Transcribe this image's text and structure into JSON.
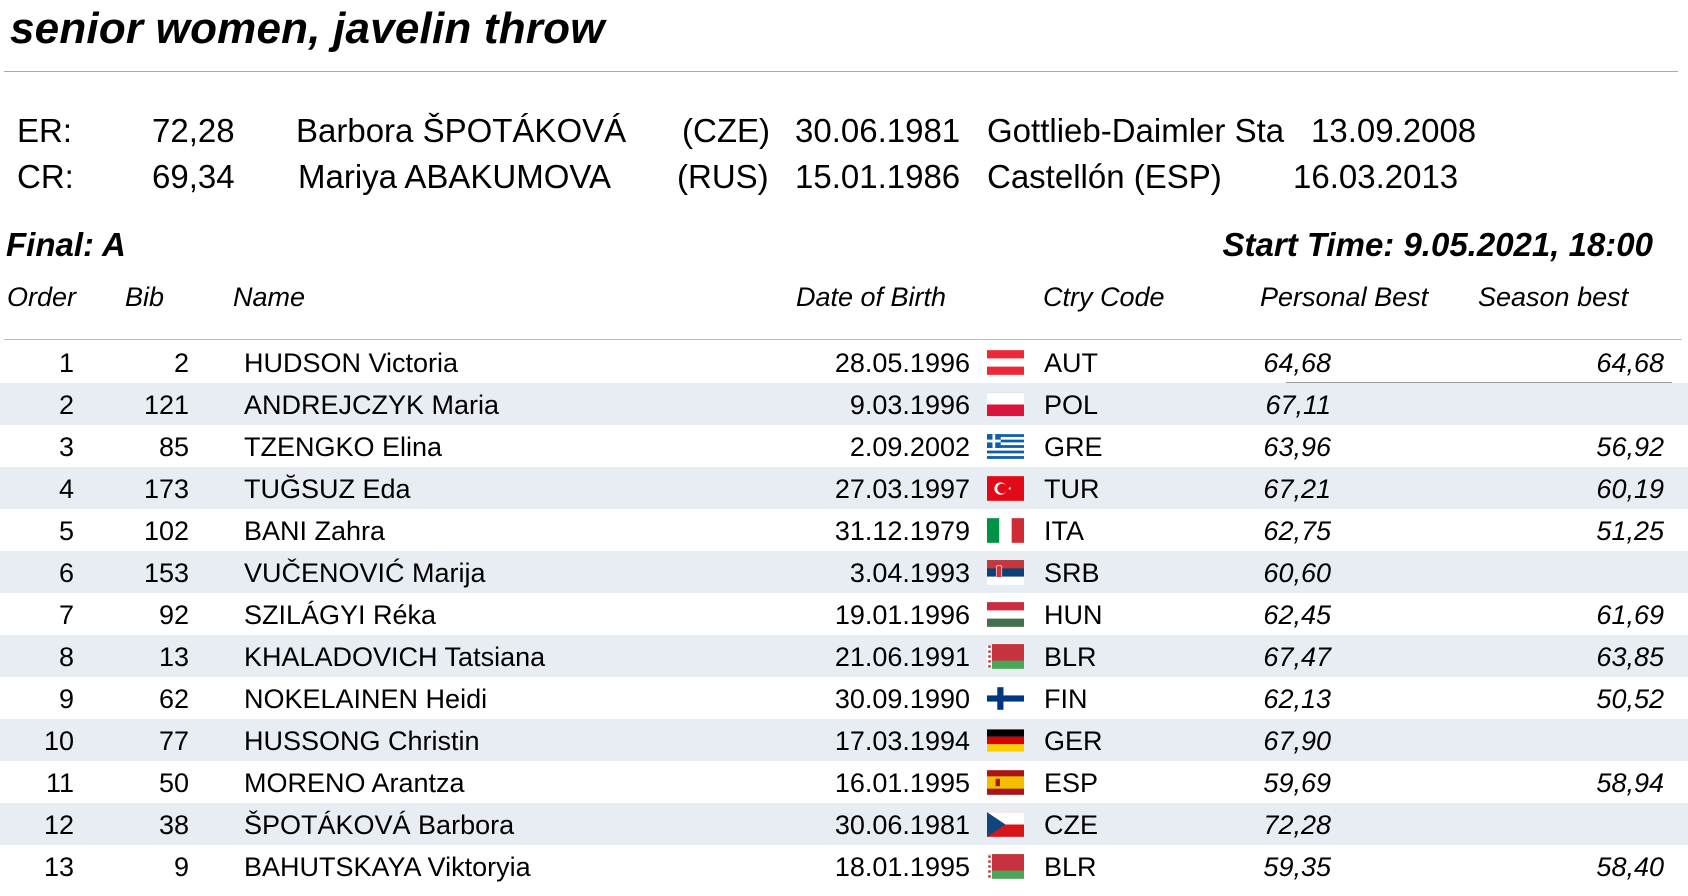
{
  "header": {
    "title": "senior women, javelin throw"
  },
  "records": [
    {
      "type": "ER:",
      "mark": "72,28",
      "athlete": "Barbora ŠPOTÁKOVÁ",
      "country": "(CZE)",
      "dob": "30.06.1981",
      "venue": "Gottlieb-Daimler Sta",
      "date": "13.09.2008"
    },
    {
      "type": "CR:",
      "mark": "69,34",
      "athlete": "Mariya ABAKUMOVA",
      "country": "(RUS)",
      "dob": "15.01.1986",
      "venue": "Castellón (ESP)",
      "date": "16.03.2013"
    }
  ],
  "section": {
    "label": "Final: A",
    "start_time": "Start Time: 9.05.2021, 18:00"
  },
  "columns": {
    "order": "Order",
    "bib": "Bib",
    "name": "Name",
    "dob": "Date of Birth",
    "country": "Ctry Code",
    "pb": "Personal Best",
    "sb": "Season best"
  },
  "rows": [
    {
      "order": "1",
      "bib": "2",
      "name": "HUDSON Victoria",
      "dob": "28.05.1996",
      "flag": "flag-austria-icon",
      "code": "AUT",
      "pb": "64,68",
      "sb": "64,68"
    },
    {
      "order": "2",
      "bib": "121",
      "name": "ANDREJCZYK Maria",
      "dob": "9.03.1996",
      "flag": "flag-poland-icon",
      "code": "POL",
      "pb": "67,11",
      "sb": ""
    },
    {
      "order": "3",
      "bib": "85",
      "name": "TZENGKO Elina",
      "dob": "2.09.2002",
      "flag": "flag-greece-icon",
      "code": "GRE",
      "pb": "63,96",
      "sb": "56,92"
    },
    {
      "order": "4",
      "bib": "173",
      "name": "TUĞSUZ Eda",
      "dob": "27.03.1997",
      "flag": "flag-turkey-icon",
      "code": "TUR",
      "pb": "67,21",
      "sb": "60,19"
    },
    {
      "order": "5",
      "bib": "102",
      "name": "BANI Zahra",
      "dob": "31.12.1979",
      "flag": "flag-italy-icon",
      "code": "ITA",
      "pb": "62,75",
      "sb": "51,25"
    },
    {
      "order": "6",
      "bib": "153",
      "name": "VUČENOVIĆ Marija",
      "dob": "3.04.1993",
      "flag": "flag-serbia-icon",
      "code": "SRB",
      "pb": "60,60",
      "sb": ""
    },
    {
      "order": "7",
      "bib": "92",
      "name": "SZILÁGYI Réka",
      "dob": "19.01.1996",
      "flag": "flag-hungary-icon",
      "code": "HUN",
      "pb": "62,45",
      "sb": "61,69"
    },
    {
      "order": "8",
      "bib": "13",
      "name": "KHALADOVICH Tatsiana",
      "dob": "21.06.1991",
      "flag": "flag-belarus-icon",
      "code": "BLR",
      "pb": "67,47",
      "sb": "63,85"
    },
    {
      "order": "9",
      "bib": "62",
      "name": "NOKELAINEN Heidi",
      "dob": "30.09.1990",
      "flag": "flag-finland-icon",
      "code": "FIN",
      "pb": "62,13",
      "sb": "50,52"
    },
    {
      "order": "10",
      "bib": "77",
      "name": "HUSSONG Christin",
      "dob": "17.03.1994",
      "flag": "flag-germany-icon",
      "code": "GER",
      "pb": "67,90",
      "sb": ""
    },
    {
      "order": "11",
      "bib": "50",
      "name": "MORENO Arantza",
      "dob": "16.01.1995",
      "flag": "flag-spain-icon",
      "code": "ESP",
      "pb": "59,69",
      "sb": "58,94"
    },
    {
      "order": "12",
      "bib": "38",
      "name": "ŠPOTÁKOVÁ Barbora",
      "dob": "30.06.1981",
      "flag": "flag-czech-icon",
      "code": "CZE",
      "pb": "72,28",
      "sb": ""
    },
    {
      "order": "13",
      "bib": "9",
      "name": "BAHUTSKAYA Viktoryia",
      "dob": "18.01.1995",
      "flag": "flag-belarus-icon",
      "code": "BLR",
      "pb": "59,35",
      "sb": "58,40"
    }
  ],
  "colors": {
    "rule": "#7fb7d8",
    "alt_row": "#e8ecf3"
  }
}
